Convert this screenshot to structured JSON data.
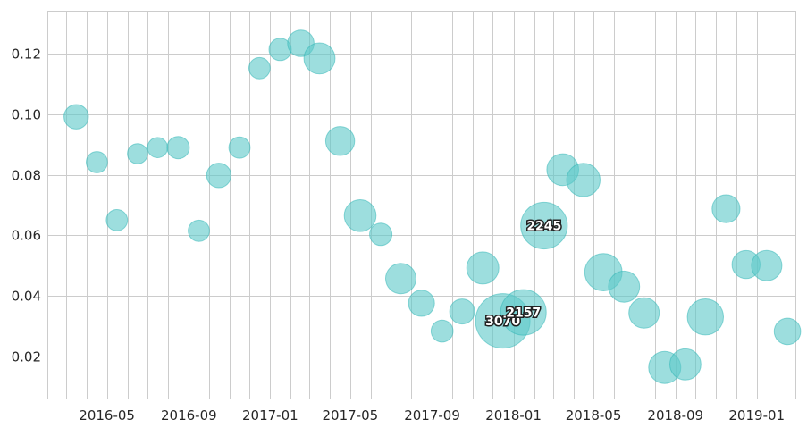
{
  "chart_data": {
    "type": "scatter",
    "title": "",
    "xlabel": "",
    "ylabel": "",
    "grid": true,
    "x_unit": "month",
    "ylim": [
      0.006,
      0.134
    ],
    "xlim": [
      "2016-02-03",
      "2019-02-28"
    ],
    "x_ticks": [
      "2016-05",
      "2016-09",
      "2017-01",
      "2017-05",
      "2017-09",
      "2018-01",
      "2018-05",
      "2018-09",
      "2019-01"
    ],
    "y_ticks": [
      "0.02",
      "0.04",
      "0.06",
      "0.08",
      "0.10",
      "0.12"
    ],
    "color": "#5bc8c8",
    "points": [
      {
        "x": "2016-03",
        "y": 0.0992,
        "size": 620
      },
      {
        "x": "2016-04",
        "y": 0.0842,
        "size": 470
      },
      {
        "x": "2016-05",
        "y": 0.065,
        "size": 470
      },
      {
        "x": "2016-06",
        "y": 0.087,
        "size": 420
      },
      {
        "x": "2016-07",
        "y": 0.089,
        "size": 420
      },
      {
        "x": "2016-08",
        "y": 0.089,
        "size": 520
      },
      {
        "x": "2016-09",
        "y": 0.0615,
        "size": 470
      },
      {
        "x": "2016-10",
        "y": 0.0798,
        "size": 620
      },
      {
        "x": "2016-11",
        "y": 0.089,
        "size": 470
      },
      {
        "x": "2016-12",
        "y": 0.1153,
        "size": 470
      },
      {
        "x": "2017-01",
        "y": 0.1215,
        "size": 520
      },
      {
        "x": "2017-02",
        "y": 0.1235,
        "size": 720
      },
      {
        "x": "2017-03",
        "y": 0.1185,
        "size": 1000
      },
      {
        "x": "2017-04",
        "y": 0.0912,
        "size": 870
      },
      {
        "x": "2017-05",
        "y": 0.0665,
        "size": 1050
      },
      {
        "x": "2017-06",
        "y": 0.0603,
        "size": 520
      },
      {
        "x": "2017-07",
        "y": 0.0457,
        "size": 950
      },
      {
        "x": "2017-08",
        "y": 0.0375,
        "size": 700
      },
      {
        "x": "2017-09",
        "y": 0.0283,
        "size": 500
      },
      {
        "x": "2017-10",
        "y": 0.0348,
        "size": 650
      },
      {
        "x": "2017-11",
        "y": 0.0492,
        "size": 1070
      },
      {
        "x": "2017-12",
        "y": 0.0317,
        "size": 3070,
        "label": "3070"
      },
      {
        "x": "2018-01",
        "y": 0.0345,
        "size": 2157,
        "label": "2157"
      },
      {
        "x": "2018-02",
        "y": 0.0632,
        "size": 2245,
        "label": "2245"
      },
      {
        "x": "2018-03",
        "y": 0.0817,
        "size": 1050
      },
      {
        "x": "2018-04",
        "y": 0.0783,
        "size": 1160
      },
      {
        "x": "2018-05",
        "y": 0.0478,
        "size": 1450
      },
      {
        "x": "2018-06",
        "y": 0.043,
        "size": 1000
      },
      {
        "x": "2018-07",
        "y": 0.0343,
        "size": 950
      },
      {
        "x": "2018-08",
        "y": 0.0163,
        "size": 1070
      },
      {
        "x": "2018-09",
        "y": 0.0173,
        "size": 1000
      },
      {
        "x": "2018-10",
        "y": 0.033,
        "size": 1350
      },
      {
        "x": "2018-11",
        "y": 0.0688,
        "size": 800
      },
      {
        "x": "2018-12",
        "y": 0.0503,
        "size": 820
      },
      {
        "x": "2019-01",
        "y": 0.05,
        "size": 950
      },
      {
        "x": "2019-02",
        "y": 0.0282,
        "size": 720
      }
    ]
  }
}
